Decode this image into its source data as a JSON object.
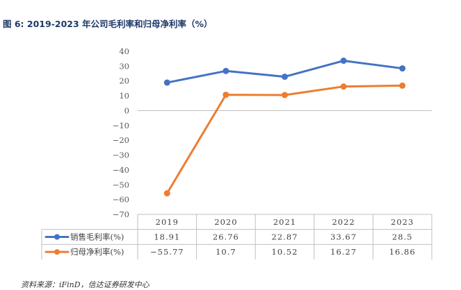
{
  "figure_title": "图 6:  2019-2023 年公司毛利率和归母净利率（%）",
  "source_note": "资料来源：iFinD，信达证券研发中心",
  "chart_data": {
    "type": "line",
    "x": [
      "2019",
      "2020",
      "2021",
      "2022",
      "2023"
    ],
    "series": [
      {
        "name": "销售毛利率(%)",
        "values": [
          18.91,
          26.76,
          22.87,
          33.67,
          28.5
        ],
        "labels": [
          "18.91",
          "26.76",
          "22.87",
          "33.67",
          "28.5"
        ],
        "color": "#4472c4"
      },
      {
        "name": "归母净利率(%)",
        "values": [
          -55.77,
          10.7,
          10.52,
          16.27,
          16.86
        ],
        "labels": [
          "-55.77",
          "10.7",
          "10.52",
          "16.27",
          "16.86"
        ],
        "color": "#ed7d31"
      }
    ],
    "ylim": [
      -70,
      40
    ],
    "yticks": [
      40,
      30,
      20,
      10,
      0,
      -10,
      -20,
      -30,
      -40,
      -50,
      -60,
      -70
    ],
    "grid": false,
    "legend": "data table rows below the plot",
    "data_table": true,
    "axis_color": "#bfbfbf"
  }
}
